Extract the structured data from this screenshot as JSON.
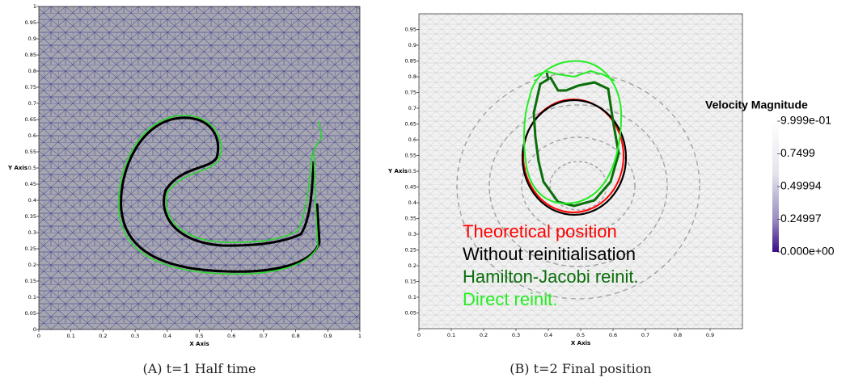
{
  "figure": {
    "panels": [
      {
        "x_axis_label": "X Axis",
        "y_axis_label": "Y Axis",
        "xticks": [
          0,
          0.1,
          0.2,
          0.3,
          0.4,
          0.5,
          0.6,
          0.7,
          0.8,
          0.9,
          1
        ],
        "yticks": [
          0,
          0.05,
          0.1,
          0.15,
          0.2,
          0.25,
          0.3,
          0.35,
          0.4,
          0.45,
          0.5,
          0.55,
          0.6,
          0.65,
          0.7,
          0.75,
          0.8,
          0.85,
          0.9,
          0.95,
          1
        ],
        "caption": "(A) t=1 Half time"
      },
      {
        "x_axis_label": "X Axis",
        "y_axis_label": "Y Axis",
        "xticks": [
          0,
          0.1,
          0.2,
          0.3,
          0.4,
          0.5,
          0.6,
          0.7,
          0.8,
          0.9
        ],
        "yticks": [
          0.05,
          0.1,
          0.15,
          0.2,
          0.25,
          0.3,
          0.35,
          0.4,
          0.45,
          0.5,
          0.55,
          0.6,
          0.65,
          0.7,
          0.75,
          0.8,
          0.85,
          0.9,
          0.95
        ],
        "legend": [
          {
            "label": "Theoretical position",
            "color": "#ff0000"
          },
          {
            "label": "Without reinitialisation",
            "color": "#000000"
          },
          {
            "label": "Hamilton-Jacobi reinit.",
            "color": "#0a6e0a"
          },
          {
            "label": "Direct reinit.",
            "color": "#22ee22"
          }
        ],
        "colorbar": {
          "title": "Velocity Magnitude",
          "labels": [
            "9.999e-01",
            "0.7499",
            "0.49994",
            "0.24997",
            "0.000e+00"
          ]
        },
        "caption": "(B) t=2 Final position"
      }
    ]
  }
}
